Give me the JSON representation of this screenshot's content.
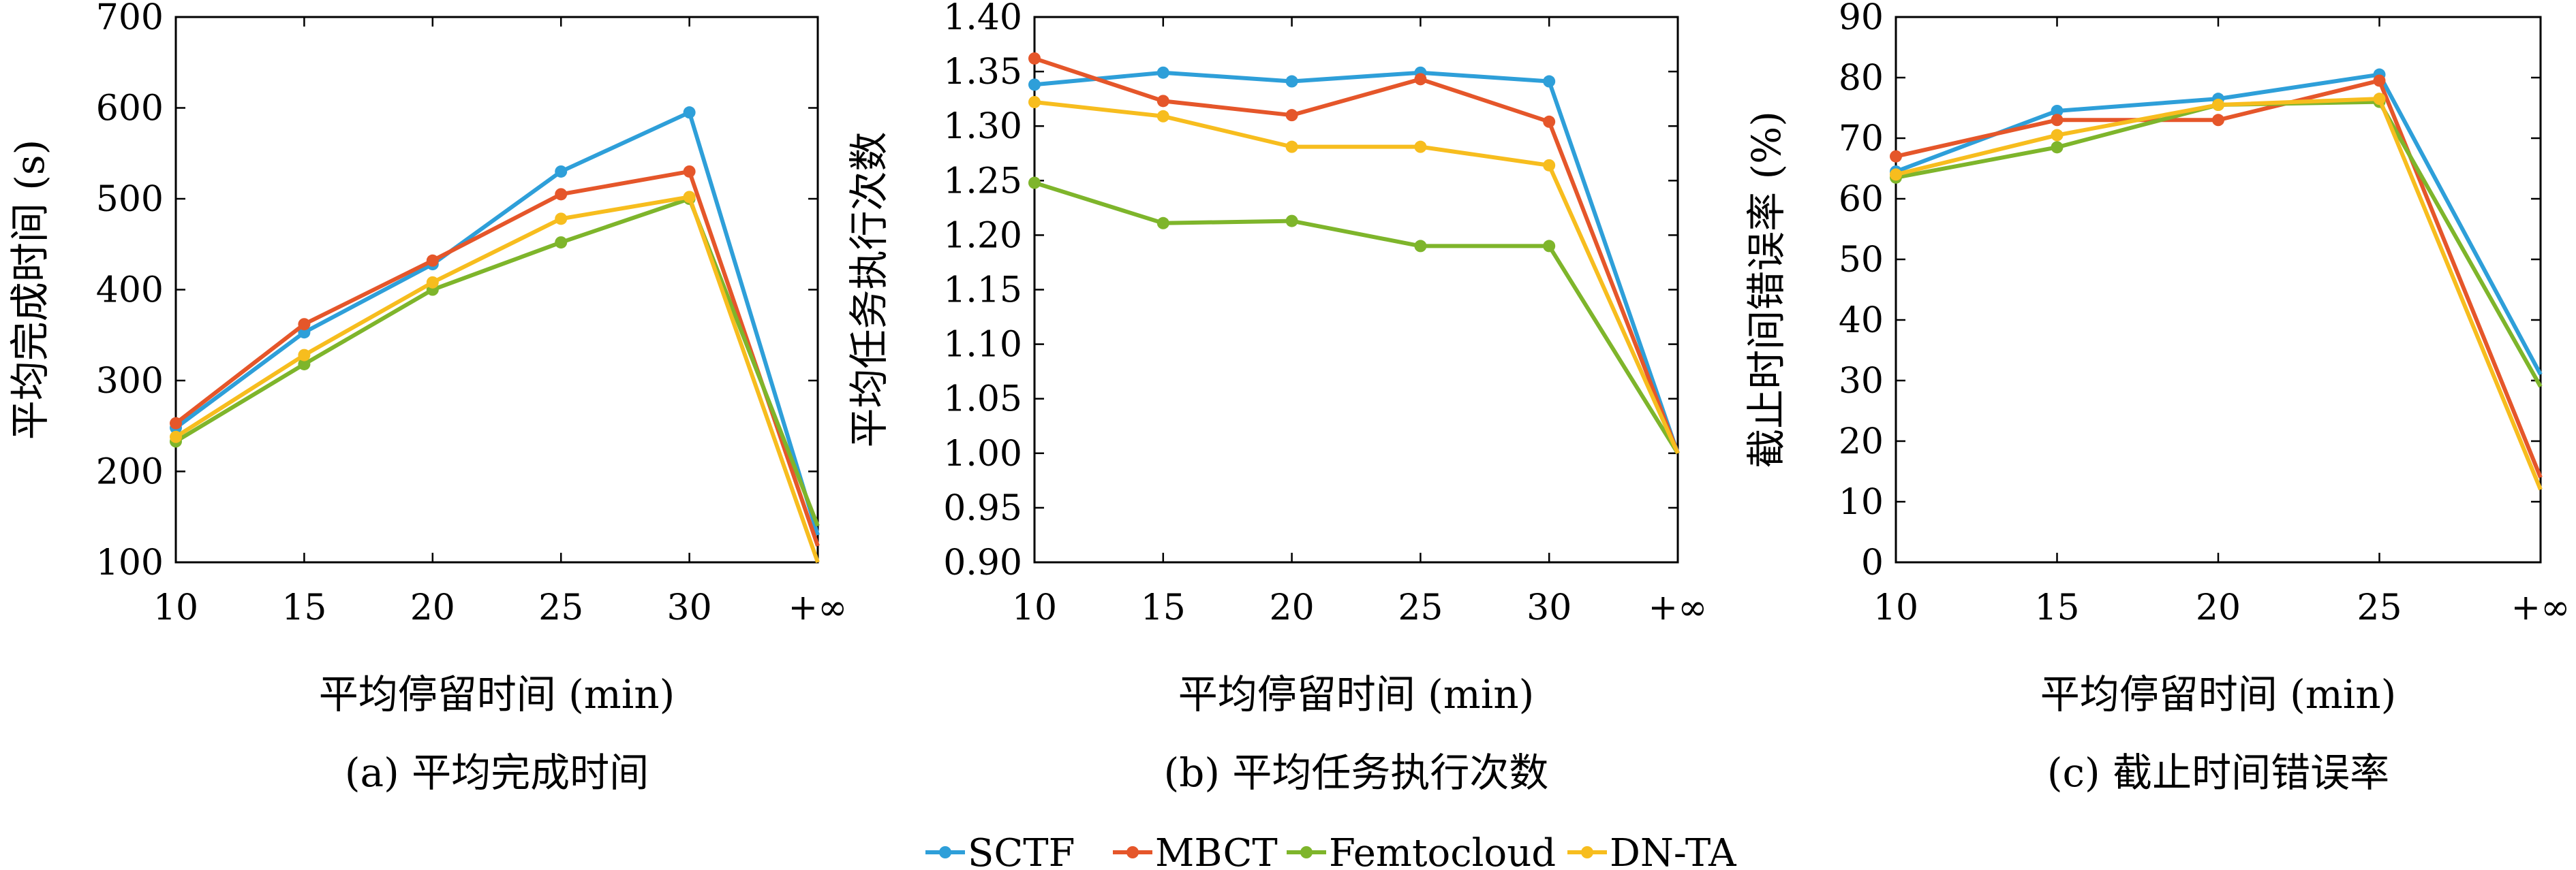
{
  "figure": {
    "legend": [
      {
        "name": "SCTF",
        "color": "#2e9fd9"
      },
      {
        "name": "MBCT",
        "color": "#e5562a"
      },
      {
        "name": "Femtocloud",
        "color": "#7eb52b"
      },
      {
        "name": "DN-TA",
        "color": "#f7bd1e"
      }
    ]
  },
  "chart_data": [
    {
      "type": "line",
      "caption": "(a) 平均完成时间",
      "xlabel": "平均停留时间 (min)",
      "ylabel": "平均完成时间 (s)",
      "categories": [
        "10",
        "15",
        "20",
        "25",
        "30",
        "+∞"
      ],
      "ylim": [
        100,
        700
      ],
      "yticks": [
        "100",
        "200",
        "300",
        "400",
        "500",
        "600",
        "700"
      ],
      "grid": false,
      "series": [
        {
          "name": "SCTF",
          "color": "#2e9fd9",
          "values": [
            248,
            353,
            428,
            530,
            595,
            130
          ]
        },
        {
          "name": "MBCT",
          "color": "#e5562a",
          "values": [
            253,
            362,
            432,
            505,
            530,
            118
          ]
        },
        {
          "name": "Femtocloud",
          "color": "#7eb52b",
          "values": [
            233,
            318,
            400,
            452,
            500,
            140
          ]
        },
        {
          "name": "DN-TA",
          "color": "#f7bd1e",
          "values": [
            238,
            328,
            408,
            478,
            502,
            100
          ]
        }
      ]
    },
    {
      "type": "line",
      "caption": "(b) 平均任务执行次数",
      "xlabel": "平均停留时间 (min)",
      "ylabel": "平均任务执行次数",
      "categories": [
        "10",
        "15",
        "20",
        "25",
        "30",
        "+∞"
      ],
      "ylim": [
        0.9,
        1.4
      ],
      "yticks": [
        "0.90",
        "0.95",
        "1.00",
        "1.05",
        "1.10",
        "1.15",
        "1.20",
        "1.25",
        "1.30",
        "1.35",
        "1.40"
      ],
      "grid": false,
      "series": [
        {
          "name": "SCTF",
          "color": "#2e9fd9",
          "values": [
            1.338,
            1.349,
            1.341,
            1.349,
            1.341,
            1.0
          ]
        },
        {
          "name": "MBCT",
          "color": "#e5562a",
          "values": [
            1.362,
            1.323,
            1.31,
            1.343,
            1.304,
            1.0
          ]
        },
        {
          "name": "Femtocloud",
          "color": "#7eb52b",
          "values": [
            1.248,
            1.211,
            1.213,
            1.19,
            1.19,
            1.0
          ]
        },
        {
          "name": "DN-TA",
          "color": "#f7bd1e",
          "values": [
            1.322,
            1.309,
            1.281,
            1.281,
            1.264,
            1.0
          ]
        }
      ]
    },
    {
      "type": "line",
      "caption": "(c) 截止时间错误率",
      "xlabel": "平均停留时间 (min)",
      "ylabel": "截止时间错误率 (%)",
      "categories": [
        "10",
        "15",
        "20",
        "25",
        "+∞"
      ],
      "ylim": [
        0,
        90
      ],
      "yticks": [
        "0",
        "10",
        "20",
        "30",
        "40",
        "50",
        "60",
        "70",
        "80",
        "90"
      ],
      "grid": false,
      "series": [
        {
          "name": "SCTF",
          "color": "#2e9fd9",
          "values": [
            64.5,
            74.5,
            76.5,
            80.5,
            31
          ]
        },
        {
          "name": "MBCT",
          "color": "#e5562a",
          "values": [
            67,
            73,
            73,
            79.5,
            14
          ]
        },
        {
          "name": "Femtocloud",
          "color": "#7eb52b",
          "values": [
            63.5,
            68.5,
            75.5,
            76,
            29
          ]
        },
        {
          "name": "DN-TA",
          "color": "#f7bd1e",
          "values": [
            64,
            70.5,
            75.5,
            76.5,
            12
          ]
        }
      ]
    }
  ]
}
